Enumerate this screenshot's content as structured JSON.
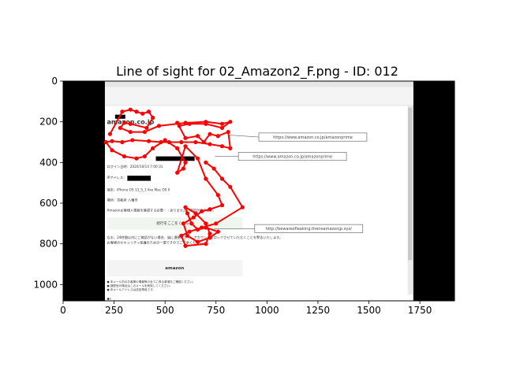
{
  "chart_data": {
    "type": "scatter",
    "title": "Line of sight for 02_Amazon2_F.png - ID: 012",
    "xlabel": "",
    "ylabel": "",
    "xlim": [
      0,
      1920
    ],
    "ylim": [
      1080,
      0
    ],
    "x_ticks": [
      0,
      250,
      500,
      750,
      1000,
      1250,
      1500,
      1750
    ],
    "y_ticks": [
      0,
      200,
      400,
      600,
      800,
      1000
    ],
    "grid": false,
    "legend": "none",
    "colors": {
      "gaze": "#ff0000",
      "letterbox": "#000000",
      "email_bg": "#ffffff"
    },
    "email": {
      "logo_top": "amazon.co.jp",
      "login_text": "ログイン日時：2020/10/14 7:00:31",
      "ip_text": "IPアドレス：",
      "device_text": "端末：iPhone OS 13_5_1 like Mac OS X",
      "place_text": "場所：京都府 八幡市",
      "notice_text": "Amazonお客様人情報を確認する必要・・ありません。確認ができます。",
      "link_text": "続行をここをくちらへ",
      "body_line_1": "なお、24時間以内にご確認がない場合、誠に遺憾ながら、アカウントをロックさせていただくことを警告いたします。",
      "body_line_2": "お客様のセキュリティ保護のための一環ですのでご了承ください。",
      "logo_bottom": "amazon",
      "footer_1": "● 本メール内のお客様の情報等の全てに係る事項をご確認ください。",
      "footer_2": "● 誤配信の場合はこのメールを削除してください。",
      "footer_3": "● 本メールアドレスは送信専用です。",
      "footer_4": "●0",
      "callouts": [
        "https://www.amazon.co.jp/amazonprime",
        "https://www.amazon.co.jp/amazonprime",
        "http://bewareofleaking.theneamazonjp.xyz/"
      ]
    },
    "gaze_path": [
      [
        230,
        260
      ],
      [
        290,
        150
      ],
      [
        330,
        140
      ],
      [
        360,
        150
      ],
      [
        390,
        160
      ],
      [
        420,
        150
      ],
      [
        440,
        180
      ],
      [
        410,
        230
      ],
      [
        330,
        210
      ],
      [
        300,
        205
      ],
      [
        280,
        230
      ],
      [
        330,
        250
      ],
      [
        400,
        250
      ],
      [
        470,
        220
      ],
      [
        600,
        205
      ],
      [
        700,
        200
      ],
      [
        780,
        210
      ],
      [
        820,
        200
      ],
      [
        780,
        230
      ],
      [
        700,
        210
      ],
      [
        620,
        210
      ],
      [
        570,
        220
      ],
      [
        560,
        205
      ],
      [
        600,
        280
      ],
      [
        660,
        270
      ],
      [
        690,
        300
      ],
      [
        720,
        260
      ],
      [
        760,
        270
      ],
      [
        810,
        250
      ],
      [
        820,
        330
      ],
      [
        780,
        320
      ],
      [
        720,
        310
      ],
      [
        650,
        300
      ],
      [
        580,
        300
      ],
      [
        520,
        300
      ],
      [
        480,
        300
      ],
      [
        420,
        295
      ],
      [
        340,
        290
      ],
      [
        290,
        300
      ],
      [
        240,
        295
      ],
      [
        210,
        300
      ],
      [
        240,
        340
      ],
      [
        300,
        370
      ],
      [
        360,
        380
      ],
      [
        400,
        370
      ],
      [
        440,
        330
      ],
      [
        500,
        290
      ],
      [
        560,
        330
      ],
      [
        600,
        400
      ],
      [
        590,
        430
      ],
      [
        560,
        450
      ],
      [
        600,
        320
      ],
      [
        660,
        380
      ],
      [
        700,
        480
      ],
      [
        760,
        560
      ],
      [
        780,
        610
      ],
      [
        720,
        630
      ],
      [
        680,
        640
      ],
      [
        640,
        670
      ],
      [
        590,
        700
      ],
      [
        610,
        760
      ],
      [
        660,
        790
      ],
      [
        720,
        770
      ],
      [
        760,
        740
      ],
      [
        700,
        720
      ],
      [
        660,
        730
      ],
      [
        630,
        700
      ],
      [
        610,
        650
      ],
      [
        600,
        620
      ],
      [
        650,
        650
      ],
      [
        700,
        700
      ],
      [
        720,
        750
      ],
      [
        700,
        800
      ],
      [
        600,
        810
      ],
      [
        580,
        760
      ],
      [
        620,
        740
      ],
      [
        680,
        720
      ],
      [
        750,
        700
      ],
      [
        880,
        620
      ],
      [
        820,
        520
      ],
      [
        780,
        480
      ],
      [
        740,
        430
      ],
      [
        700,
        400
      ]
    ]
  }
}
